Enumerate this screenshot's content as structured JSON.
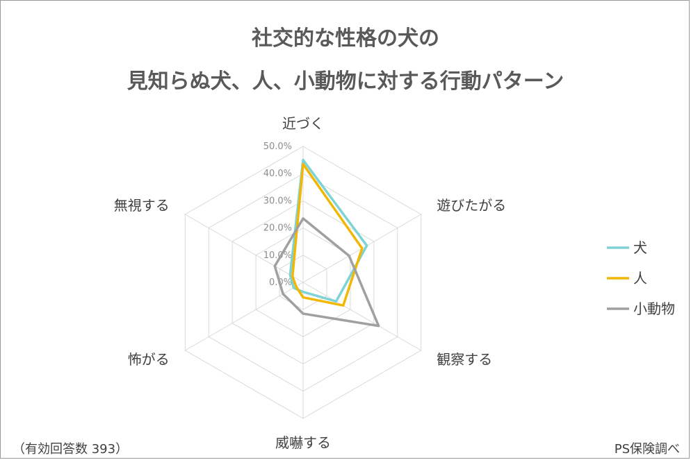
{
  "title_line1": "社交的な性格の犬の",
  "title_line2": "見知らぬ犬、人、小動物に対する行動パターン",
  "footnote_left": "（有効回答数 393）",
  "footnote_right": "PS保険調べ",
  "chart_data": {
    "type": "radar",
    "axes": [
      "近づく",
      "遊びたがる",
      "観察する",
      "威嚇する",
      "怖がる",
      "無視する"
    ],
    "tick_labels": [
      "0.0%",
      "10.0%",
      "20.0%",
      "30.0%",
      "40.0%",
      "50.0%"
    ],
    "range": [
      0,
      50
    ],
    "series": [
      {
        "name": "犬",
        "color": "#7ed3d6",
        "values": [
          45.0,
          27.0,
          14.0,
          3.5,
          4.0,
          5.5
        ]
      },
      {
        "name": "人",
        "color": "#f2b705",
        "values": [
          43.5,
          25.0,
          17.0,
          5.5,
          3.0,
          4.5
        ]
      },
      {
        "name": "小動物",
        "color": "#a0a0a0",
        "values": [
          23.5,
          19.5,
          32.0,
          11.5,
          8.5,
          12.0
        ]
      }
    ],
    "grid": true,
    "legend_position": "right"
  }
}
